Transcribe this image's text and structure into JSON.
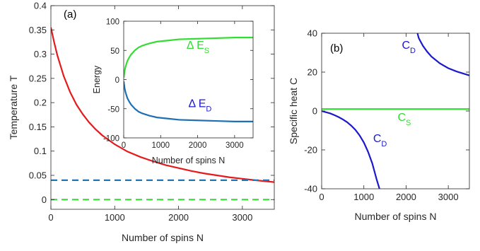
{
  "chart_data": [
    {
      "panel_label": "(a)",
      "type": "line",
      "xlabel": "Number of spins  N",
      "ylabel": "Temperature  T",
      "xlim": [
        0,
        3500
      ],
      "ylim": [
        -0.02,
        0.4
      ],
      "xticks": [
        "0",
        "1000",
        "2000",
        "3000"
      ],
      "yticks": [
        "0",
        "0.05",
        "0.1",
        "0.15",
        "0.2",
        "0.25",
        "0.3",
        "0.35",
        "0.4"
      ],
      "series": [
        {
          "color": "#e41a1c",
          "style": "solid",
          "x": [
            0,
            50,
            100,
            200,
            300,
            400,
            500,
            600,
            700,
            800,
            1000,
            1200,
            1400,
            1600,
            1800,
            2000,
            2200,
            2400,
            2600,
            2800,
            3000,
            3200,
            3500
          ],
          "y": [
            0.355,
            0.325,
            0.298,
            0.255,
            0.222,
            0.196,
            0.176,
            0.159,
            0.145,
            0.133,
            0.114,
            0.099,
            0.088,
            0.079,
            0.071,
            0.065,
            0.059,
            0.054,
            0.05,
            0.046,
            0.043,
            0.04,
            0.036
          ]
        },
        {
          "color": "#1f77b4",
          "style": "dashed",
          "x": [
            0,
            3500
          ],
          "y": [
            0.04,
            0.04
          ]
        },
        {
          "color": "#33dd33",
          "style": "dashed",
          "x": [
            0,
            3500
          ],
          "y": [
            0.0,
            0.0
          ]
        }
      ]
    },
    {
      "type": "line",
      "xlabel": "Number of spins  N",
      "ylabel": "Energy",
      "xlim": [
        0,
        3500
      ],
      "ylim": [
        -100,
        100
      ],
      "xticks": [
        "0",
        "1000",
        "2000",
        "3000"
      ],
      "yticks": [
        "-100",
        "-50",
        "0",
        "50",
        "100"
      ],
      "annotations": [
        {
          "text": "Δ E",
          "sub": "S",
          "color": "#33dd33",
          "x": 1700,
          "y": 53
        },
        {
          "text": "Δ E",
          "sub": "D",
          "color": "#1a1acc",
          "x": 1750,
          "y": -47
        }
      ],
      "series": [
        {
          "color": "#33dd33",
          "style": "solid",
          "x": [
            0,
            25,
            50,
            100,
            150,
            200,
            300,
            400,
            500,
            700,
            900,
            1200,
            1500,
            2000,
            2500,
            3000,
            3500
          ],
          "y": [
            3,
            15,
            22,
            32,
            38,
            43,
            50,
            55,
            58,
            62,
            65,
            67,
            69,
            70,
            71,
            72,
            72
          ]
        },
        {
          "color": "#1f6fb4",
          "style": "solid",
          "x": [
            0,
            25,
            50,
            100,
            150,
            200,
            300,
            400,
            500,
            700,
            900,
            1200,
            1500,
            2000,
            2500,
            3000,
            3500
          ],
          "y": [
            -3,
            -15,
            -22,
            -32,
            -38,
            -43,
            -50,
            -55,
            -58,
            -62,
            -65,
            -67,
            -69,
            -70,
            -71,
            -72,
            -72
          ]
        }
      ]
    },
    {
      "panel_label": "(b)",
      "type": "line",
      "xlabel": "Number of spins  N",
      "ylabel": "Specific heat  C",
      "xlim": [
        0,
        3500
      ],
      "ylim": [
        -40,
        40
      ],
      "xticks": [
        "0",
        "1000",
        "2000",
        "3000"
      ],
      "yticks": [
        "-40",
        "-20",
        "0",
        "20",
        "40"
      ],
      "annotations": [
        {
          "text": "C",
          "sub": "D",
          "color": "#1a1acc",
          "x": 1900,
          "y": 32
        },
        {
          "text": "C",
          "sub": "D",
          "color": "#1a1acc",
          "x": 1220,
          "y": -16
        },
        {
          "text": "C",
          "sub": "S",
          "color": "#33dd33",
          "x": 1800,
          "y": -5
        }
      ],
      "series": [
        {
          "color": "#1a1acc",
          "style": "solid",
          "x": [
            0,
            100,
            200,
            300,
            400,
            500,
            600,
            700,
            800,
            900,
            1000,
            1100,
            1200,
            1300,
            1370
          ],
          "y": [
            0,
            -0.6,
            -1.2,
            -2.1,
            -3.1,
            -4.3,
            -5.7,
            -7.5,
            -9.7,
            -12.6,
            -16.2,
            -21,
            -27,
            -35,
            -40
          ]
        },
        {
          "color": "#1a1acc",
          "style": "solid",
          "x": [
            2270,
            2300,
            2400,
            2500,
            2600,
            2800,
            3000,
            3200,
            3500
          ],
          "y": [
            40,
            37.5,
            33.5,
            30.5,
            28,
            24.5,
            22,
            20.3,
            18.3
          ]
        },
        {
          "color": "#33dd33",
          "style": "solid",
          "x": [
            0,
            3500
          ],
          "y": [
            1,
            1
          ]
        }
      ]
    }
  ]
}
